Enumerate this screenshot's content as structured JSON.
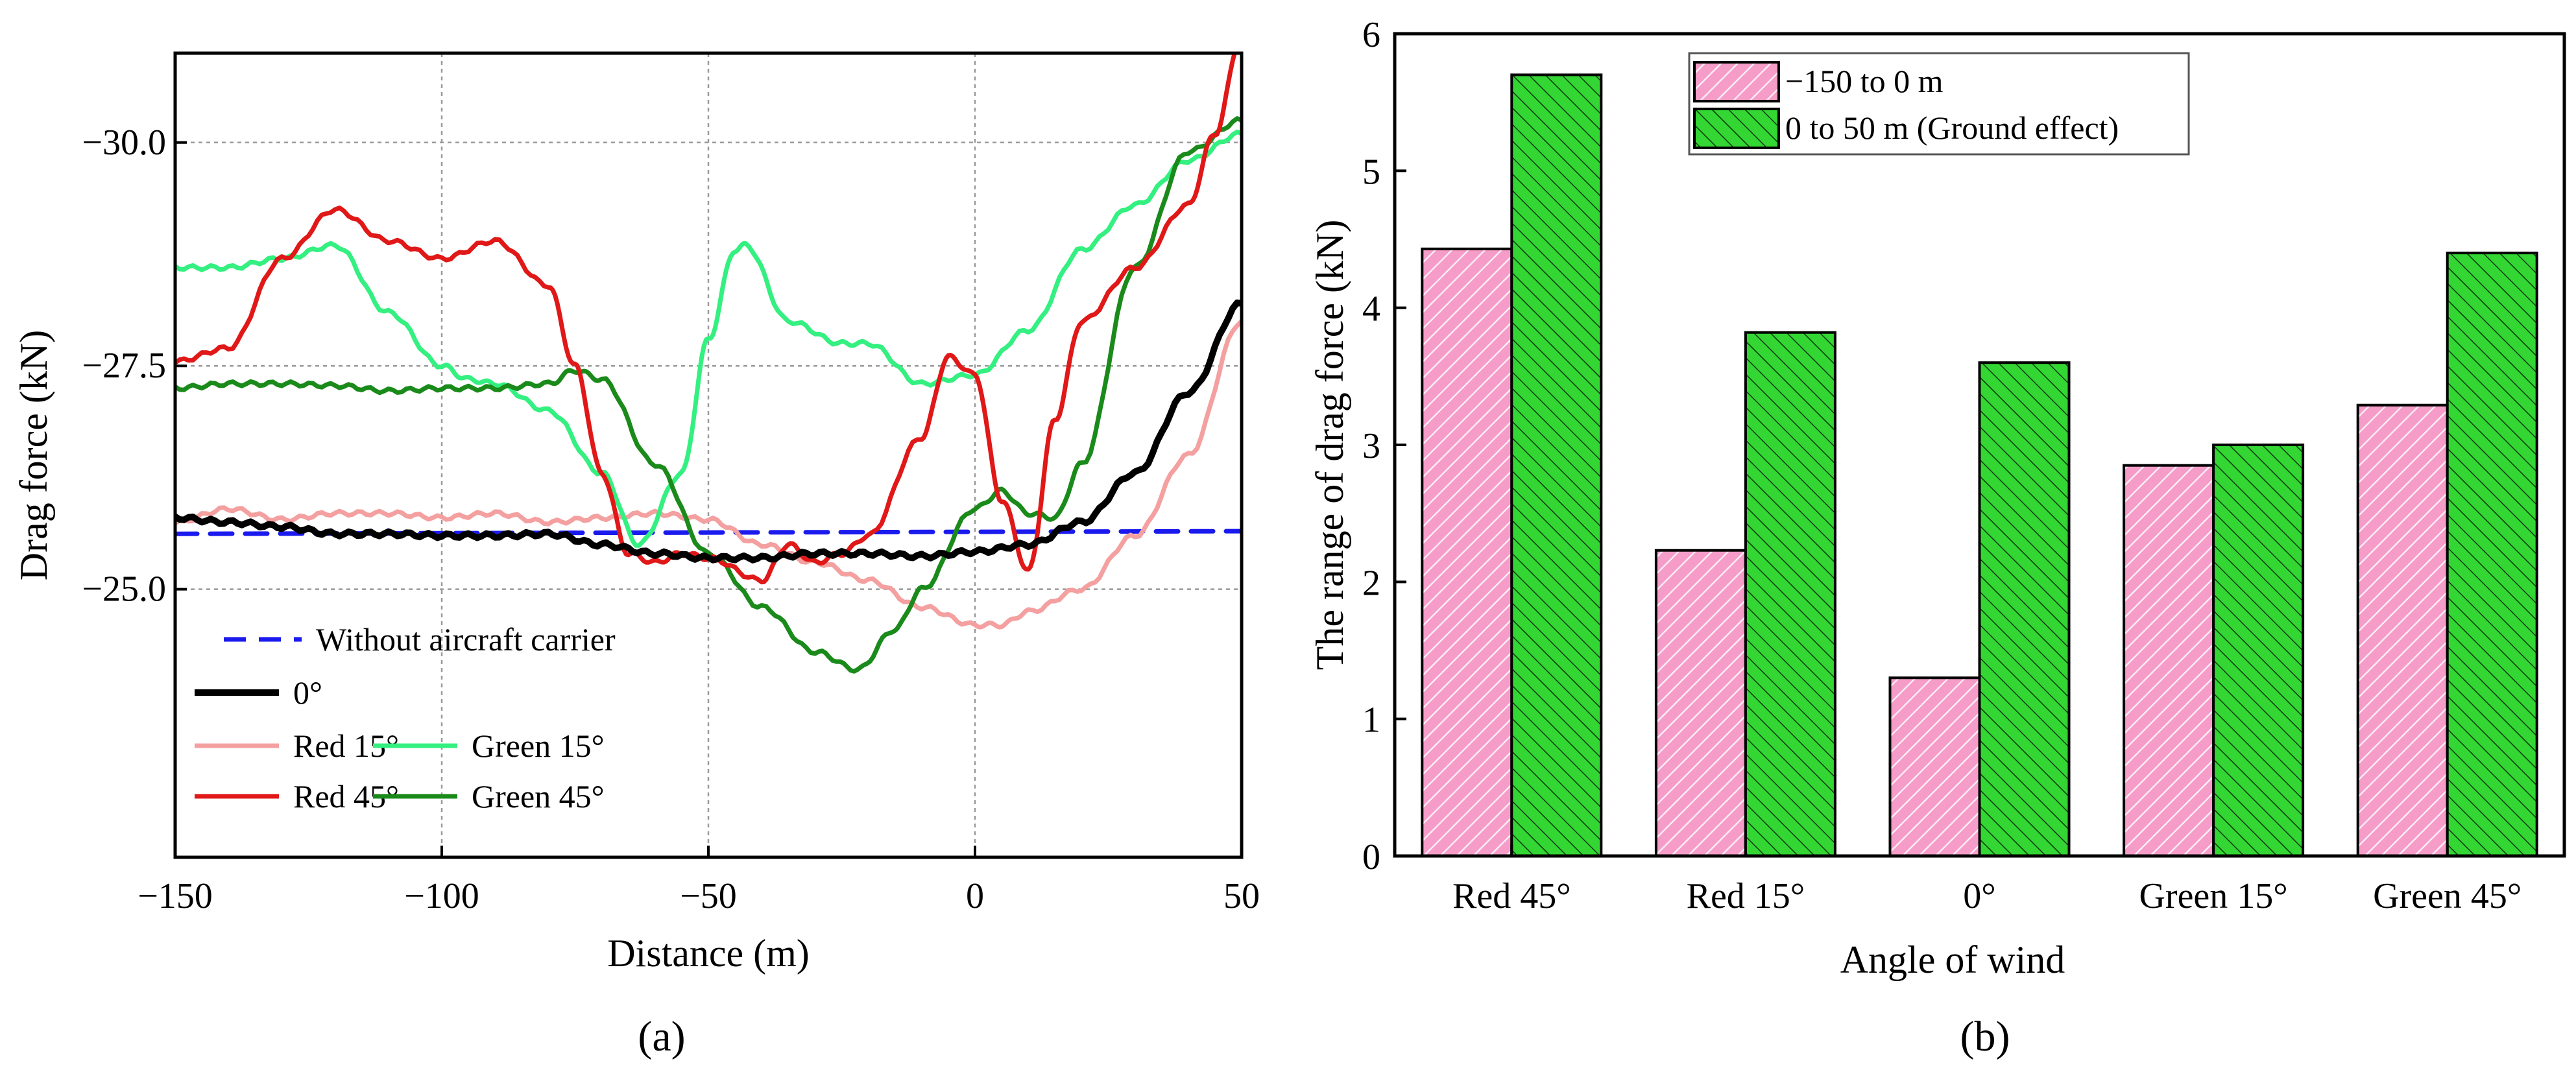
{
  "chart_data": [
    {
      "panel": "(a)",
      "type": "line",
      "title": "",
      "xlabel": "Distance (m)",
      "ylabel": "Drag force (kN)",
      "xlim": [
        -150,
        50
      ],
      "ylim": [
        -22.0,
        -31.0
      ],
      "xticks": [
        -150,
        -100,
        -50,
        0,
        50
      ],
      "yticks": [
        -30.0,
        -27.5,
        -25.0
      ],
      "xtick_labels": [
        "−150",
        "−100",
        "−50",
        "0",
        "50"
      ],
      "ytick_labels": [
        "−30.0",
        "−27.5",
        "−25.0"
      ],
      "grid": true,
      "legend": "bottom-left",
      "colors": {
        "black": "#000000",
        "red15": "#f4a0a0",
        "red45": "#e01818",
        "green15": "#33f080",
        "green45": "#1a8a1a",
        "blue": "#1a1aee"
      },
      "series": [
        {
          "name": "Without aircraft carrier",
          "color": "#1a1aee",
          "dash": true,
          "x": [
            -150,
            50
          ],
          "y": [
            -25.62,
            -25.65
          ]
        },
        {
          "name": "0°",
          "color": "#000000",
          "x": [
            -150,
            -140,
            -130,
            -120,
            -110,
            -100,
            -90,
            -80,
            -70,
            -60,
            -50,
            -40,
            -30,
            -20,
            -10,
            0,
            10,
            20,
            30,
            40,
            50
          ],
          "y": [
            -25.8,
            -25.75,
            -25.7,
            -25.62,
            -25.62,
            -25.6,
            -25.6,
            -25.62,
            -25.5,
            -25.4,
            -25.35,
            -25.35,
            -25.4,
            -25.4,
            -25.37,
            -25.42,
            -25.5,
            -25.75,
            -26.3,
            -27.2,
            -28.2
          ]
        },
        {
          "name": "Red 15°",
          "color": "#f4a0a0",
          "x": [
            -150,
            -140,
            -130,
            -120,
            -110,
            -100,
            -90,
            -80,
            -70,
            -60,
            -50,
            -40,
            -30,
            -20,
            -10,
            0,
            5,
            10,
            20,
            30,
            40,
            50
          ],
          "y": [
            -25.75,
            -25.9,
            -25.78,
            -25.85,
            -25.85,
            -25.8,
            -25.85,
            -25.75,
            -25.8,
            -25.85,
            -25.78,
            -25.5,
            -25.3,
            -25.1,
            -24.8,
            -24.6,
            -24.6,
            -24.75,
            -25.0,
            -25.6,
            -26.5,
            -28.0
          ]
        },
        {
          "name": "Green 15°",
          "color": "#33f080",
          "x": [
            -150,
            -140,
            -130,
            -120,
            -110,
            -100,
            -95,
            -90,
            -80,
            -70,
            -63,
            -55,
            -50,
            -45,
            -43,
            -35,
            -25,
            -20,
            -10,
            0,
            10,
            20,
            30,
            40,
            50
          ],
          "y": [
            -28.6,
            -28.6,
            -28.7,
            -28.85,
            -28.1,
            -27.5,
            -27.35,
            -27.3,
            -27.0,
            -26.3,
            -25.5,
            -26.3,
            -27.8,
            -28.8,
            -28.85,
            -28.0,
            -27.75,
            -27.75,
            -27.3,
            -27.4,
            -27.9,
            -28.8,
            -29.3,
            -29.8,
            -30.1
          ]
        },
        {
          "name": "Red 45°",
          "color": "#e01818",
          "x": [
            -150,
            -140,
            -130,
            -120,
            -110,
            -100,
            -90,
            -80,
            -75,
            -70,
            -65,
            -60,
            -55,
            -50,
            -40,
            -35,
            -30,
            -25,
            -20,
            -10,
            -5,
            0,
            5,
            10,
            15,
            20,
            30,
            40,
            45,
            50
          ],
          "y": [
            -27.55,
            -27.7,
            -28.7,
            -29.25,
            -28.9,
            -28.7,
            -28.9,
            -28.4,
            -27.5,
            -26.3,
            -25.4,
            -25.3,
            -25.4,
            -25.35,
            -25.1,
            -25.5,
            -25.3,
            -25.4,
            -25.6,
            -26.7,
            -27.6,
            -27.4,
            -26.0,
            -25.2,
            -26.9,
            -28.0,
            -28.6,
            -29.3,
            -30.1,
            -31.2
          ]
        },
        {
          "name": "Green 45°",
          "color": "#1a8a1a",
          "x": [
            -150,
            -140,
            -130,
            -120,
            -110,
            -100,
            -90,
            -80,
            -75,
            -70,
            -60,
            -50,
            -40,
            -30,
            -22,
            -15,
            -10,
            0,
            5,
            10,
            15,
            20,
            30,
            40,
            50
          ],
          "y": [
            -27.25,
            -27.3,
            -27.3,
            -27.28,
            -27.22,
            -27.25,
            -27.25,
            -27.3,
            -27.45,
            -27.35,
            -26.4,
            -25.4,
            -24.8,
            -24.3,
            -24.1,
            -24.55,
            -25.0,
            -25.9,
            -26.1,
            -25.85,
            -25.8,
            -26.4,
            -28.6,
            -29.9,
            -30.25
          ]
        }
      ]
    },
    {
      "panel": "(b)",
      "type": "bar",
      "title": "",
      "xlabel": "Angle of wind",
      "ylabel": "The range of drag force (kN)",
      "ylim": [
        0,
        6
      ],
      "yticks": [
        0,
        1,
        2,
        3,
        4,
        5,
        6
      ],
      "grid": false,
      "legend": "top-left",
      "categories": [
        "Red 45°",
        "Red 15°",
        "0°",
        "Green 15°",
        "Green 45°"
      ],
      "series": [
        {
          "name": "−150 to 0 m",
          "color": "#f08cc0",
          "values": [
            4.43,
            2.23,
            1.3,
            2.85,
            3.29
          ]
        },
        {
          "name": "0 to 50 m (Ground effect)",
          "color": "#2fd12f",
          "values": [
            5.7,
            3.82,
            3.6,
            3.0,
            4.4
          ]
        }
      ]
    }
  ],
  "captions": {
    "a": "(a)",
    "b": "(b)"
  }
}
